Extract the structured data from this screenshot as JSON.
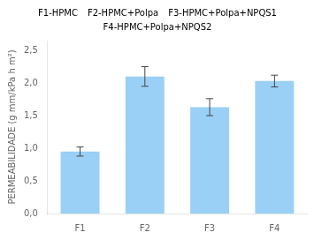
{
  "chart_data": {
    "type": "bar",
    "categories": [
      "F1",
      "F2",
      "F3",
      "F4"
    ],
    "values": [
      0.95,
      2.1,
      1.63,
      2.03
    ],
    "errors": [
      0.07,
      0.15,
      0.13,
      0.09
    ],
    "ylabel": "PERMEABILIDADE (g mm/kPa h m²)",
    "ylim": [
      0,
      2.65
    ],
    "yticks": [
      {
        "value": 0.0,
        "label": "0,0"
      },
      {
        "value": 0.5,
        "label": "0,5"
      },
      {
        "value": 1.0,
        "label": "1,0"
      },
      {
        "value": 1.5,
        "label": "1,5"
      },
      {
        "value": 2.0,
        "label": "2,0"
      },
      {
        "value": 2.5,
        "label": "2,5"
      }
    ],
    "legend_labels": [
      "F1-HPMC",
      "F2-HPMC+Polpa",
      "F3-HPMC+Polpa+NPQS1",
      "F4-HPMC+Polpa+NPQS2"
    ],
    "legend": "top",
    "grid": false
  }
}
